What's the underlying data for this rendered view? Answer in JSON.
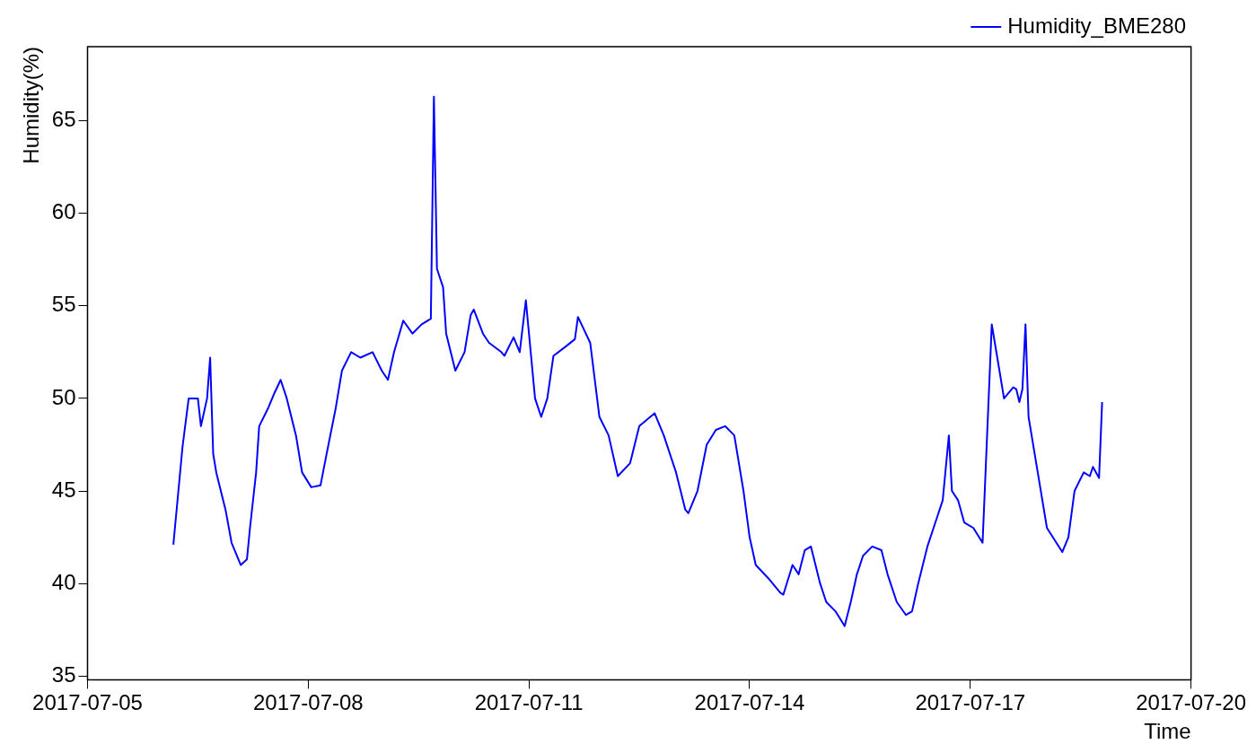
{
  "chart_data": {
    "type": "line",
    "xlabel": "Time",
    "ylabel": "Humidity(%)",
    "xlim": [
      "2017-07-05",
      "2017-07-20"
    ],
    "xticks": [
      "2017-07-05",
      "2017-07-08",
      "2017-07-11",
      "2017-07-14",
      "2017-07-17",
      "2017-07-20"
    ],
    "ylim": [
      34.8,
      69
    ],
    "yticks": [
      35,
      40,
      45,
      50,
      55,
      60,
      65
    ],
    "grid": false,
    "legend": "top right",
    "marker": "none",
    "line_style": "solid",
    "series": [
      {
        "name": "Humidity_BME280",
        "color": "#0000ff",
        "x": [
          "2017-07-06T04:00",
          "2017-07-06T07:00",
          "2017-07-06T09:00",
          "2017-07-06T12:00",
          "2017-07-06T13:00",
          "2017-07-06T15:00",
          "2017-07-06T16:00",
          "2017-07-06T17:00",
          "2017-07-06T18:00",
          "2017-07-06T21:00",
          "2017-07-06T23:00",
          "2017-07-07T02:00",
          "2017-07-07T04:00",
          "2017-07-07T05:00",
          "2017-07-07T07:00",
          "2017-07-07T08:00",
          "2017-07-07T11:00",
          "2017-07-07T13:00",
          "2017-07-07T15:00",
          "2017-07-07T17:00",
          "2017-07-07T20:00",
          "2017-07-07T22:00",
          "2017-07-08T01:00",
          "2017-07-08T04:00",
          "2017-07-08T06:00",
          "2017-07-08T09:00",
          "2017-07-08T11:00",
          "2017-07-08T14:00",
          "2017-07-08T17:00",
          "2017-07-08T21:00",
          "2017-07-09T00:00",
          "2017-07-09T02:00",
          "2017-07-09T04:00",
          "2017-07-09T07:00",
          "2017-07-09T10:00",
          "2017-07-09T13:00",
          "2017-07-09T16:00",
          "2017-07-09T17:00",
          "2017-07-09T18:00",
          "2017-07-09T20:00",
          "2017-07-09T21:00",
          "2017-07-10T00:00",
          "2017-07-10T03:00",
          "2017-07-10T05:00",
          "2017-07-10T06:00",
          "2017-07-10T09:00",
          "2017-07-10T11:00",
          "2017-07-10T15:00",
          "2017-07-10T16:00",
          "2017-07-10T19:00",
          "2017-07-10T21:00",
          "2017-07-10T23:00",
          "2017-07-11T02:00",
          "2017-07-11T04:00",
          "2017-07-11T06:00",
          "2017-07-11T08:00",
          "2017-07-11T12:00",
          "2017-07-11T15:00",
          "2017-07-11T16:00",
          "2017-07-11T20:00",
          "2017-07-11T23:00",
          "2017-07-12T02:00",
          "2017-07-12T05:00",
          "2017-07-12T09:00",
          "2017-07-12T12:00",
          "2017-07-12T17:00",
          "2017-07-12T20:00",
          "2017-07-13T00:00",
          "2017-07-13T03:00",
          "2017-07-13T04:00",
          "2017-07-13T07:00",
          "2017-07-13T10:00",
          "2017-07-13T13:00",
          "2017-07-13T16:00",
          "2017-07-13T19:00",
          "2017-07-13T22:00",
          "2017-07-14T00:00",
          "2017-07-14T02:00",
          "2017-07-14T06:00",
          "2017-07-14T10:00",
          "2017-07-14T11:00",
          "2017-07-14T14:00",
          "2017-07-14T16:00",
          "2017-07-14T18:00",
          "2017-07-14T20:00",
          "2017-07-14T23:00",
          "2017-07-15T01:00",
          "2017-07-15T04:00",
          "2017-07-15T07:00",
          "2017-07-15T09:00",
          "2017-07-15T11:00",
          "2017-07-15T13:00",
          "2017-07-15T16:00",
          "2017-07-15T19:00",
          "2017-07-15T21:00",
          "2017-07-16T00:00",
          "2017-07-16T03:00",
          "2017-07-16T05:00",
          "2017-07-16T07:00",
          "2017-07-16T10:00",
          "2017-07-16T13:00",
          "2017-07-16T15:00",
          "2017-07-16T17:00",
          "2017-07-16T18:00",
          "2017-07-16T20:00",
          "2017-07-16T22:00",
          "2017-07-17T01:00",
          "2017-07-17T04:00",
          "2017-07-17T07:00",
          "2017-07-17T08:00",
          "2017-07-17T10:00",
          "2017-07-17T11:00",
          "2017-07-17T14:00",
          "2017-07-17T15:00",
          "2017-07-17T16:00",
          "2017-07-17T17:00",
          "2017-07-17T18:00",
          "2017-07-17T19:00",
          "2017-07-17T22:00",
          "2017-07-18T01:00",
          "2017-07-18T06:00",
          "2017-07-18T08:00",
          "2017-07-18T10:00",
          "2017-07-18T13:00",
          "2017-07-18T15:00",
          "2017-07-18T16:00",
          "2017-07-18T18:00",
          "2017-07-18T19:00"
        ],
        "values": [
          42.1,
          47.4,
          50.0,
          50.0,
          48.5,
          50.0,
          52.2,
          47.0,
          46.0,
          44.0,
          42.2,
          41.0,
          41.3,
          43.0,
          46.0,
          48.5,
          49.5,
          50.3,
          51.0,
          50.0,
          48.0,
          46.0,
          45.2,
          45.3,
          47.0,
          49.5,
          51.5,
          52.5,
          52.2,
          52.5,
          51.5,
          51.0,
          52.5,
          54.2,
          53.5,
          54.0,
          54.3,
          66.3,
          57.0,
          56.0,
          53.5,
          51.5,
          52.5,
          54.5,
          54.8,
          53.5,
          53.0,
          52.5,
          52.3,
          53.3,
          52.5,
          55.3,
          50.0,
          49.0,
          50.0,
          52.3,
          52.8,
          53.2,
          54.4,
          53.0,
          49.0,
          48.0,
          45.8,
          46.5,
          48.5,
          49.2,
          48.0,
          46.0,
          44.0,
          43.8,
          45.0,
          47.5,
          48.3,
          48.5,
          48.0,
          45.0,
          42.5,
          41.0,
          40.3,
          39.5,
          39.4,
          41.0,
          40.5,
          41.8,
          42.0,
          40.0,
          39.0,
          38.5,
          37.7,
          39.0,
          40.5,
          41.5,
          42.0,
          41.8,
          40.5,
          39.0,
          38.3,
          38.5,
          40.0,
          42.0,
          43.5,
          44.5,
          48.0,
          45.0,
          44.5,
          43.3,
          43.0,
          42.2,
          54.0,
          53.0,
          51.0,
          50.0,
          50.6,
          50.5,
          49.8,
          50.5,
          54.0,
          49.0,
          46.0,
          43.0,
          41.7,
          42.5,
          45.0,
          46.0,
          45.8,
          46.3,
          45.7,
          49.8
        ]
      }
    ]
  }
}
